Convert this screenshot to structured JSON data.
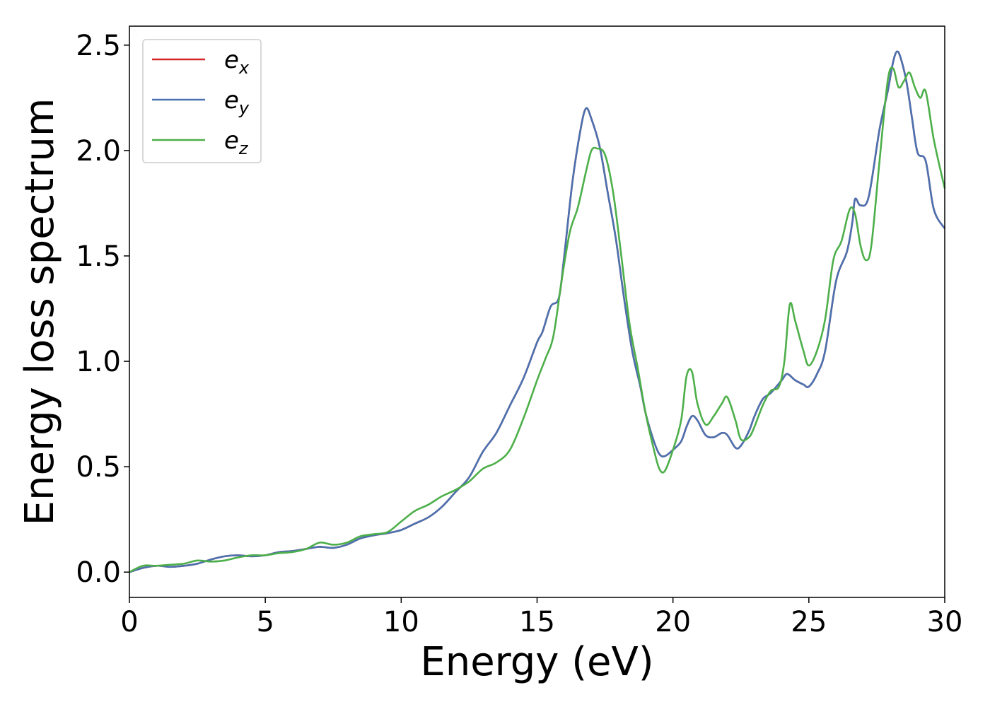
{
  "chart_data": {
    "type": "line",
    "xlabel": "Energy (eV)",
    "ylabel": "Energy loss spectrum",
    "xlim": [
      0,
      30
    ],
    "ylim": [
      -0.12,
      2.59
    ],
    "xticks": [
      0,
      5,
      10,
      15,
      20,
      25,
      30
    ],
    "xtick_labels": [
      "0",
      "5",
      "10",
      "15",
      "20",
      "25",
      "30"
    ],
    "yticks": [
      0.0,
      0.5,
      1.0,
      1.5,
      2.0,
      2.5
    ],
    "ytick_labels": [
      "0.0",
      "0.5",
      "1.0",
      "1.5",
      "2.0",
      "2.5"
    ],
    "grid": false,
    "legend_position": "top-left",
    "series": [
      {
        "name": "e",
        "subscript": "x",
        "color": "#d62728",
        "x": [
          0,
          0.5,
          1,
          1.5,
          2,
          2.5,
          3,
          3.5,
          4,
          4.5,
          5,
          5.5,
          6,
          6.5,
          7,
          7.5,
          8,
          8.5,
          9,
          9.5,
          10,
          10.5,
          11,
          11.5,
          12,
          12.5,
          13,
          13.5,
          14,
          14.5,
          15,
          15.2,
          15.5,
          15.8,
          16,
          16.3,
          16.6,
          16.8,
          17,
          17.3,
          17.6,
          17.9,
          18.2,
          18.5,
          18.8,
          19,
          19.3,
          19.5,
          19.7,
          20,
          20.3,
          20.5,
          20.7,
          20.9,
          21.2,
          21.5,
          21.8,
          22,
          22.3,
          22.5,
          22.8,
          23,
          23.3,
          23.6,
          24,
          24.2,
          24.5,
          24.8,
          25,
          25.3,
          25.6,
          26,
          26.4,
          26.6,
          26.7,
          26.9,
          27.2,
          27.6,
          27.9,
          28.1,
          28.25,
          28.4,
          28.6,
          28.8,
          29,
          29.3,
          29.6,
          30
        ],
        "values": [
          0.0,
          0.02,
          0.03,
          0.025,
          0.03,
          0.04,
          0.06,
          0.075,
          0.08,
          0.075,
          0.08,
          0.095,
          0.1,
          0.11,
          0.12,
          0.115,
          0.13,
          0.16,
          0.175,
          0.185,
          0.2,
          0.23,
          0.26,
          0.31,
          0.38,
          0.45,
          0.57,
          0.66,
          0.79,
          0.92,
          1.09,
          1.14,
          1.26,
          1.3,
          1.5,
          1.85,
          2.1,
          2.2,
          2.15,
          2.02,
          1.8,
          1.58,
          1.3,
          1.05,
          0.88,
          0.75,
          0.62,
          0.56,
          0.55,
          0.58,
          0.62,
          0.69,
          0.74,
          0.72,
          0.65,
          0.64,
          0.66,
          0.65,
          0.59,
          0.6,
          0.67,
          0.74,
          0.82,
          0.85,
          0.91,
          0.94,
          0.91,
          0.89,
          0.88,
          0.94,
          1.05,
          1.38,
          1.52,
          1.66,
          1.77,
          1.74,
          1.78,
          2.1,
          2.28,
          2.42,
          2.47,
          2.43,
          2.32,
          2.15,
          1.99,
          1.95,
          1.72,
          1.63
        ]
      },
      {
        "name": "e",
        "subscript": "y",
        "color": "#4a72b0",
        "x": [
          0,
          0.5,
          1,
          1.5,
          2,
          2.5,
          3,
          3.5,
          4,
          4.5,
          5,
          5.5,
          6,
          6.5,
          7,
          7.5,
          8,
          8.5,
          9,
          9.5,
          10,
          10.5,
          11,
          11.5,
          12,
          12.5,
          13,
          13.5,
          14,
          14.5,
          15,
          15.2,
          15.5,
          15.8,
          16,
          16.3,
          16.6,
          16.8,
          17,
          17.3,
          17.6,
          17.9,
          18.2,
          18.5,
          18.8,
          19,
          19.3,
          19.5,
          19.7,
          20,
          20.3,
          20.5,
          20.7,
          20.9,
          21.2,
          21.5,
          21.8,
          22,
          22.3,
          22.5,
          22.8,
          23,
          23.3,
          23.6,
          24,
          24.2,
          24.5,
          24.8,
          25,
          25.3,
          25.6,
          26,
          26.4,
          26.6,
          26.7,
          26.9,
          27.2,
          27.6,
          27.9,
          28.1,
          28.25,
          28.4,
          28.6,
          28.8,
          29,
          29.3,
          29.6,
          30
        ],
        "values": [
          0.0,
          0.02,
          0.03,
          0.025,
          0.03,
          0.04,
          0.06,
          0.075,
          0.08,
          0.075,
          0.08,
          0.095,
          0.1,
          0.11,
          0.12,
          0.115,
          0.13,
          0.16,
          0.175,
          0.185,
          0.2,
          0.23,
          0.26,
          0.31,
          0.38,
          0.45,
          0.57,
          0.66,
          0.79,
          0.92,
          1.09,
          1.14,
          1.26,
          1.3,
          1.5,
          1.85,
          2.1,
          2.2,
          2.15,
          2.02,
          1.8,
          1.58,
          1.3,
          1.05,
          0.88,
          0.75,
          0.62,
          0.56,
          0.55,
          0.58,
          0.62,
          0.69,
          0.74,
          0.72,
          0.65,
          0.64,
          0.66,
          0.65,
          0.59,
          0.6,
          0.67,
          0.74,
          0.82,
          0.85,
          0.91,
          0.94,
          0.91,
          0.89,
          0.88,
          0.94,
          1.05,
          1.38,
          1.52,
          1.66,
          1.77,
          1.74,
          1.78,
          2.1,
          2.28,
          2.42,
          2.47,
          2.43,
          2.32,
          2.15,
          1.99,
          1.95,
          1.72,
          1.63
        ]
      },
      {
        "name": "e",
        "subscript": "z",
        "color": "#4daf4a",
        "x": [
          0,
          0.5,
          1,
          1.5,
          2,
          2.5,
          3,
          3.5,
          4,
          4.5,
          5,
          5.5,
          6,
          6.5,
          7,
          7.5,
          8,
          8.5,
          9,
          9.5,
          10,
          10.5,
          11,
          11.5,
          12,
          12.5,
          13,
          13.5,
          14,
          14.5,
          15,
          15.3,
          15.6,
          15.9,
          16.2,
          16.5,
          16.8,
          17,
          17.2,
          17.5,
          17.8,
          18.1,
          18.4,
          18.7,
          19,
          19.3,
          19.5,
          19.7,
          20,
          20.3,
          20.5,
          20.7,
          20.9,
          21.2,
          21.5,
          21.8,
          22,
          22.3,
          22.5,
          22.8,
          23,
          23.3,
          23.6,
          23.9,
          24.1,
          24.3,
          24.5,
          24.8,
          25,
          25.3,
          25.6,
          25.9,
          26.2,
          26.5,
          26.7,
          26.9,
          27.1,
          27.3,
          27.6,
          27.9,
          28.1,
          28.3,
          28.5,
          28.7,
          28.9,
          29.1,
          29.3,
          29.6,
          30
        ],
        "values": [
          0.0,
          0.03,
          0.03,
          0.035,
          0.04,
          0.055,
          0.05,
          0.055,
          0.07,
          0.08,
          0.08,
          0.09,
          0.095,
          0.11,
          0.14,
          0.13,
          0.14,
          0.17,
          0.18,
          0.19,
          0.24,
          0.29,
          0.32,
          0.36,
          0.39,
          0.43,
          0.49,
          0.52,
          0.58,
          0.73,
          0.91,
          1.01,
          1.12,
          1.38,
          1.61,
          1.73,
          1.9,
          2.0,
          2.01,
          1.98,
          1.8,
          1.5,
          1.18,
          0.97,
          0.75,
          0.58,
          0.49,
          0.48,
          0.58,
          0.72,
          0.93,
          0.95,
          0.8,
          0.7,
          0.74,
          0.8,
          0.83,
          0.72,
          0.63,
          0.64,
          0.69,
          0.79,
          0.86,
          0.88,
          1.0,
          1.27,
          1.19,
          1.05,
          0.98,
          1.05,
          1.2,
          1.48,
          1.57,
          1.72,
          1.7,
          1.55,
          1.48,
          1.55,
          1.95,
          2.33,
          2.39,
          2.3,
          2.33,
          2.37,
          2.3,
          2.25,
          2.28,
          2.05,
          1.82
        ]
      }
    ]
  }
}
